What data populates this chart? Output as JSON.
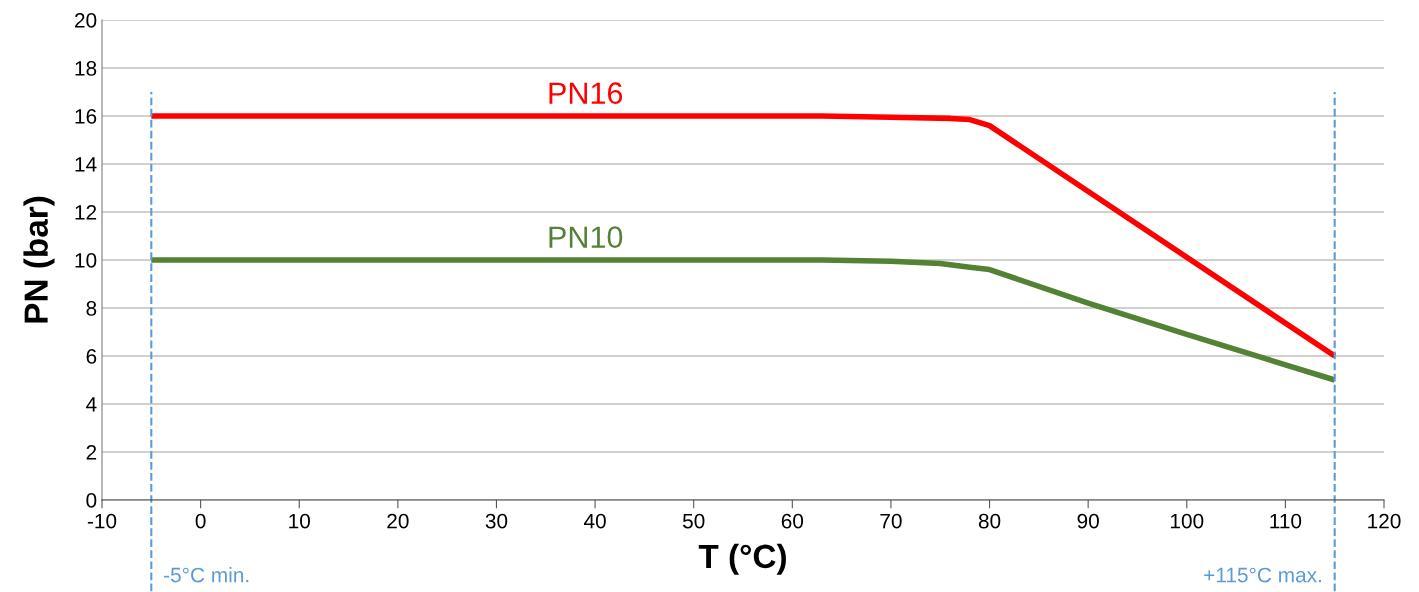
{
  "chart_data": {
    "type": "line",
    "xlabel": "T (°C)",
    "ylabel": "PN (bar)",
    "xlim": [
      -10,
      120
    ],
    "xticks": [
      -10,
      0,
      10,
      20,
      30,
      40,
      50,
      60,
      70,
      80,
      90,
      100,
      110,
      120
    ],
    "ylim": [
      0,
      20
    ],
    "yticks": [
      0,
      2,
      4,
      6,
      8,
      10,
      12,
      14,
      16,
      18,
      20
    ],
    "grid": "y",
    "legend": false,
    "marker": "none",
    "line_style": "solid",
    "series": [
      {
        "name": "PN16",
        "color": "#ff0000",
        "x": [
          -5,
          63,
          70,
          76,
          78,
          80,
          115
        ],
        "values": [
          16,
          16,
          15.95,
          15.9,
          15.85,
          15.6,
          6
        ]
      },
      {
        "name": "PN10",
        "color": "#548235",
        "x": [
          -5,
          63,
          70,
          75,
          78,
          80,
          90,
          100,
          115
        ],
        "values": [
          10,
          10,
          9.95,
          9.85,
          9.7,
          9.6,
          8.2,
          6.9,
          5
        ]
      }
    ],
    "ref_lines": [
      {
        "axis": "x",
        "value": -5,
        "label": "-5°C min.",
        "color": "#5b9bd5",
        "line_style": "dashed"
      },
      {
        "axis": "x",
        "value": 115,
        "label": "+115°C max.",
        "color": "#5b9bd5",
        "line_style": "dashed"
      }
    ]
  }
}
